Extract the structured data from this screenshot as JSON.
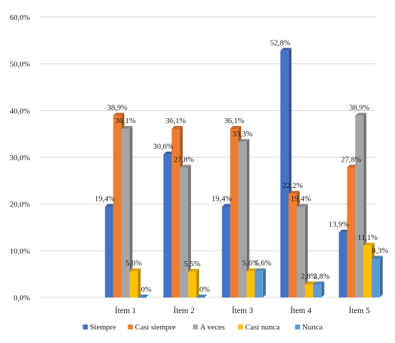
{
  "chart_data": {
    "type": "bar",
    "categories": [
      "Ítem 1",
      "Ítem 2",
      "Ítem 3",
      "Ítem 4",
      "Ítem 5"
    ],
    "series": [
      {
        "name": "Siempre",
        "color": "#4472C4",
        "values": [
          19.4,
          30.6,
          19.4,
          52.8,
          13.9
        ],
        "labels": [
          "19,4%",
          "30,6%",
          "19,4%",
          "52,8%",
          "13,9%"
        ]
      },
      {
        "name": "Casi siempre",
        "color": "#ED7D31",
        "values": [
          38.9,
          36.1,
          36.1,
          22.2,
          27.8
        ],
        "labels": [
          "38,9%",
          "36,1%",
          "36,1%",
          "22,2%",
          "27,8%"
        ]
      },
      {
        "name": "A veces",
        "color": "#A5A5A5",
        "values": [
          36.1,
          27.8,
          33.3,
          19.4,
          38.9
        ],
        "labels": [
          "36,1%",
          "27,8%",
          "33,3%",
          "19,4%",
          "38,9%"
        ]
      },
      {
        "name": "Casi nunca",
        "color": "#FFC000",
        "values": [
          5.6,
          5.5,
          5.6,
          2.8,
          11.1
        ],
        "labels": [
          "5,6%",
          "5,5%",
          "5,6%",
          "2,8%",
          "11,1%"
        ]
      },
      {
        "name": "Nunca",
        "color": "#5B9BD5",
        "values": [
          0,
          0,
          5.6,
          2.8,
          8.3
        ],
        "labels": [
          "0%",
          "0%",
          "5,6%",
          "2,8%",
          "8,3%"
        ]
      }
    ],
    "yticks": [
      "0,0%",
      "10,0%",
      "20,0%",
      "30,0%",
      "40,0%",
      "50,0%",
      "60,0%"
    ],
    "ylim": [
      0,
      60
    ],
    "grid": true,
    "legend": "bottom",
    "style": "3d-bar"
  }
}
